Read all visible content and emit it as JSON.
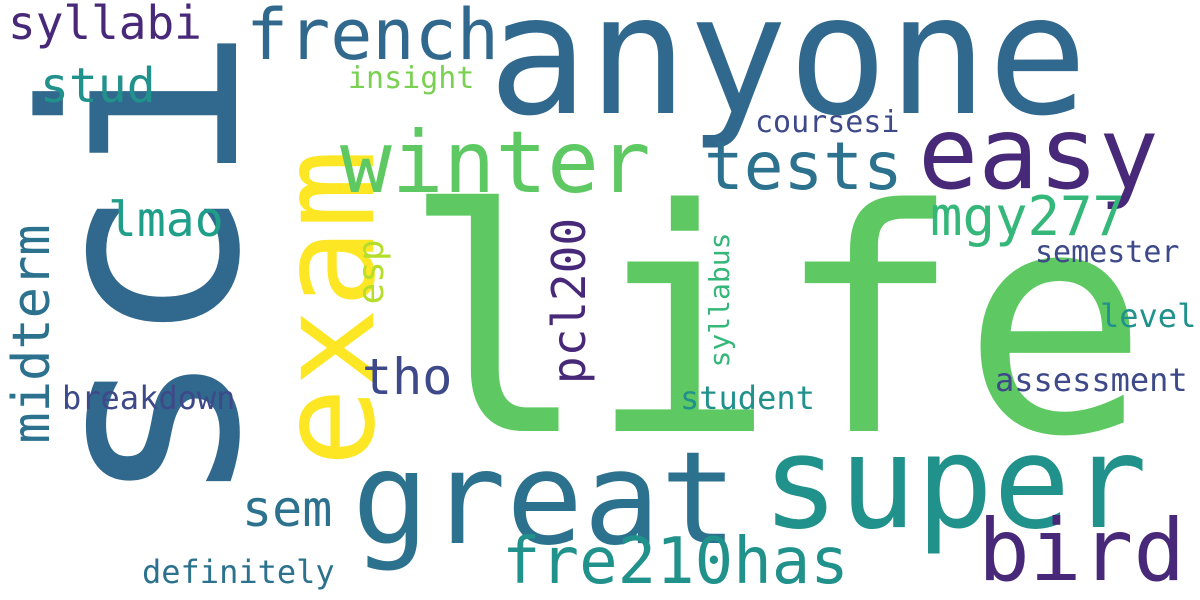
{
  "words": {
    "sci": {
      "text": "sci",
      "color": "#31688e"
    },
    "life": {
      "text": "life",
      "color": "#5ec962"
    },
    "anyone": {
      "text": "anyone",
      "color": "#31688e"
    },
    "exam": {
      "text": "exam",
      "color": "#fde725"
    },
    "great": {
      "text": "great",
      "color": "#2c728e"
    },
    "super": {
      "text": "super",
      "color": "#21918c"
    },
    "winter": {
      "text": "winter",
      "color": "#5ec962"
    },
    "easy": {
      "text": "easy",
      "color": "#482878"
    },
    "french": {
      "text": "french",
      "color": "#31688e"
    },
    "tests": {
      "text": "tests",
      "color": "#2c728e"
    },
    "bird": {
      "text": "bird",
      "color": "#482878"
    },
    "fre210has": {
      "text": "fre210has",
      "color": "#21918c"
    },
    "midterm": {
      "text": "midterm",
      "color": "#2c728e"
    },
    "syllabi": {
      "text": "syllabi",
      "color": "#482878"
    },
    "stud": {
      "text": "stud",
      "color": "#21918c"
    },
    "lmao": {
      "text": "lmao",
      "color": "#1f9e89"
    },
    "mgy277": {
      "text": "mgy277",
      "color": "#35b779"
    },
    "pcl200": {
      "text": "pcl200",
      "color": "#482878"
    },
    "esp": {
      "text": "esp",
      "color": "#b5de2b"
    },
    "tho": {
      "text": "tho",
      "color": "#3e4989"
    },
    "sem": {
      "text": "sem",
      "color": "#2c728e"
    },
    "insight": {
      "text": "insight",
      "color": "#7ad151"
    },
    "coursesi": {
      "text": "coursesi",
      "color": "#3e4989"
    },
    "semester": {
      "text": "semester",
      "color": "#3e4989"
    },
    "level": {
      "text": "level",
      "color": "#21918c"
    },
    "syllabus": {
      "text": "syllabus",
      "color": "#35b779"
    },
    "assessment": {
      "text": "assessment",
      "color": "#3e4989"
    },
    "student": {
      "text": "student",
      "color": "#21918c"
    },
    "breakdown": {
      "text": "breakdown",
      "color": "#3e4989"
    },
    "definitely": {
      "text": "definitely",
      "color": "#2c728e"
    }
  }
}
